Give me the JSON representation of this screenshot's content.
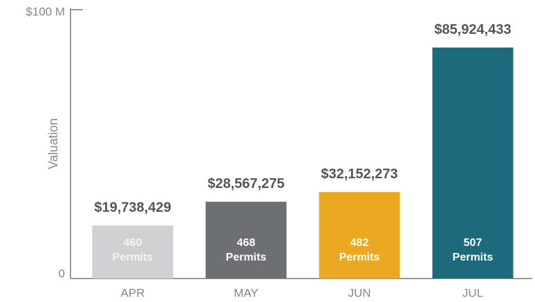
{
  "chart_data": {
    "type": "bar",
    "y_label": "Valuation",
    "categories": [
      "APR",
      "MAY",
      "JUN",
      "JUL"
    ],
    "values": [
      19738429,
      28567275,
      32152273,
      85924433
    ],
    "value_labels": [
      "$19,738,429",
      "$28,567,275",
      "$32,152,273",
      "$85,924,433"
    ],
    "colors": [
      "#d0d1d3",
      "#6d7073",
      "#eaa920",
      "#1c6a7c"
    ],
    "permits": [
      460,
      468,
      482,
      507
    ],
    "permits_label": "Permits",
    "ylim": [
      0,
      100000000
    ],
    "yticks": [
      0,
      {
        "value": 100000000,
        "label": "$100 M"
      }
    ],
    "grid": false
  }
}
